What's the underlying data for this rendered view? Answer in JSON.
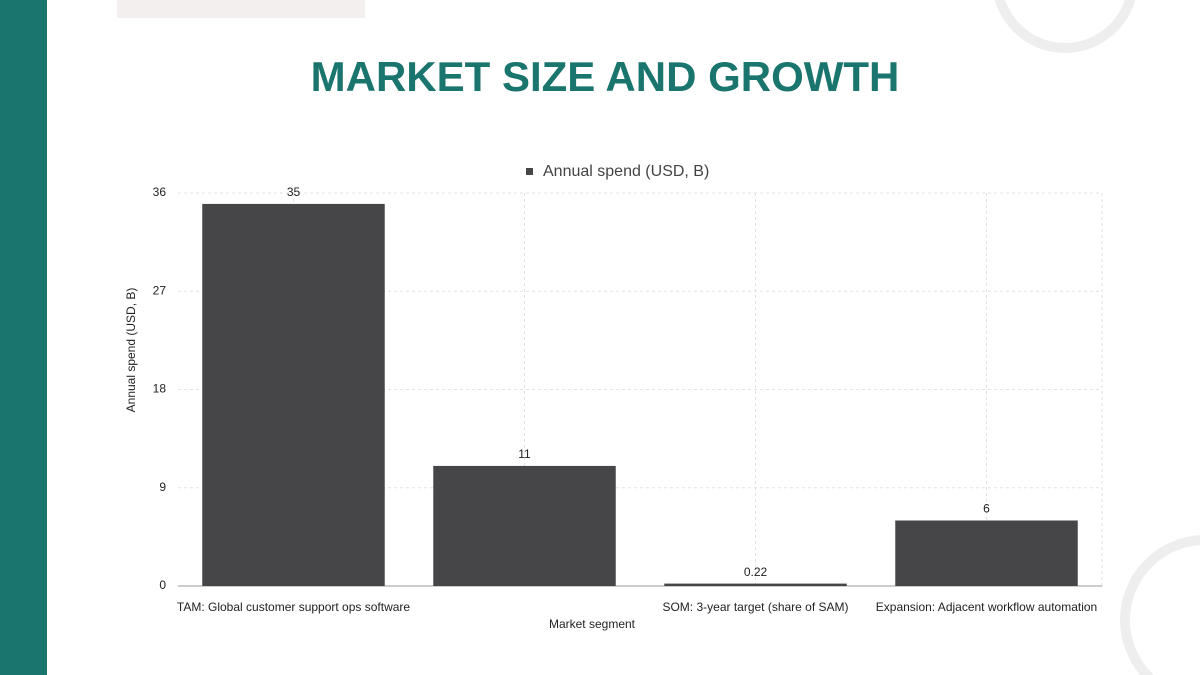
{
  "title": "MARKET SIZE AND GROWTH",
  "chart_data": {
    "type": "bar",
    "categories": [
      "TAM: Global customer support ops software",
      null,
      "SOM: 3-year target (share of SAM)",
      "Expansion: Adjacent workflow automation"
    ],
    "series": [
      {
        "name": "Annual spend (USD, B)",
        "color": "#464649",
        "values": [
          35,
          11,
          0.22,
          6
        ]
      }
    ],
    "x_label": "Market segment",
    "y_label": "Annual spend (USD, B)",
    "ylim": [
      0,
      36
    ],
    "yticks": [
      0,
      9,
      18,
      27,
      36
    ],
    "grid": true,
    "legend": "top"
  }
}
